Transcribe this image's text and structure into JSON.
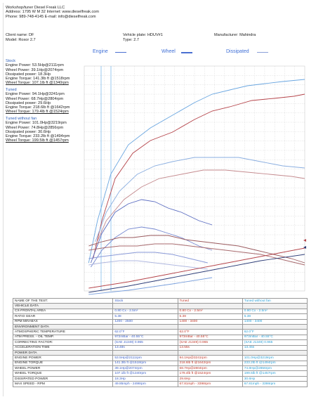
{
  "header": {
    "line1": "Workshop/tuner Diesel Freak LLC",
    "line2": "Address: 1795 W M 32 Internet: www.dieselfreak.com",
    "line3": "Phone: 989-748-4145 E-mail: info@dieselfreak.com"
  },
  "vehicle": {
    "client": "Client name: DF",
    "model": "Model: Roxor 2.7",
    "plate": "Vehicle plate: HDUV#1",
    "type": "Type: 2.7",
    "manufacturer": "Manufacturer: Mahindra"
  },
  "legend": {
    "engine": "Engine",
    "wheel": "Wheel",
    "dissipated": "Dissipated",
    "engine_color": "#4a6fd1",
    "wheel_color": "#4a6fd1",
    "dissipated_color": "#4a6fd1"
  },
  "runs": [
    {
      "title": "Stock",
      "lines": [
        "Engine Power: 53.5Hp@2111rpm",
        "Wheel Power: 39.1Hp@2074rpm",
        "Dissipated power: 18.3Hp",
        "Engine Torque: 141.3lb ft @1518rpm",
        "Wheel Torque: 107.1lb ft @1340rpm"
      ]
    },
    {
      "title": "Tuned",
      "lines": [
        "Engine Power: 94.1Hp@3241rpm",
        "Wheel Power: 68.7Hp@2804rpm",
        "Dissipated power: 29.6Hp",
        "Engine Torque: 218.6lb ft @1642rpm",
        "Wheel Torque: 179.4lb ft @1524rpm"
      ]
    },
    {
      "title": "Tuned without fan",
      "lines": [
        "Engine Power: 101.0Hp@3219rpm",
        "Wheel Power: 74.8Hp@2856rpm",
        "Dissipated power: 30.6Hp",
        "Engine Torque: 233.2lb ft @1494rpm",
        "Wheel Torque: 199.5lb ft @1457rpm"
      ]
    }
  ],
  "chart_data": {
    "type": "line",
    "series": [
      {
        "name": "Tuned without fan",
        "kind": "engine torque",
        "color": "#6aa6e0",
        "points": [
          [
            0.02,
            0.1
          ],
          [
            0.06,
            0.3
          ],
          [
            0.12,
            0.52
          ],
          [
            0.2,
            0.66
          ],
          [
            0.3,
            0.74
          ],
          [
            0.4,
            0.8
          ],
          [
            0.5,
            0.86
          ],
          [
            0.58,
            0.9
          ],
          [
            0.66,
            0.92
          ],
          [
            0.74,
            0.94
          ],
          [
            0.82,
            0.95
          ],
          [
            0.9,
            0.96
          ],
          [
            1.0,
            0.97
          ]
        ]
      },
      {
        "name": "Tuned",
        "kind": "engine torque",
        "color": "#b5444a",
        "points": [
          [
            0.04,
            0.12
          ],
          [
            0.08,
            0.3
          ],
          [
            0.14,
            0.5
          ],
          [
            0.22,
            0.62
          ],
          [
            0.3,
            0.68
          ],
          [
            0.4,
            0.72
          ],
          [
            0.5,
            0.78
          ],
          [
            0.58,
            0.82
          ],
          [
            0.66,
            0.84
          ],
          [
            0.76,
            0.87
          ],
          [
            0.86,
            0.88
          ],
          [
            0.95,
            0.89
          ],
          [
            1.0,
            0.9
          ]
        ]
      },
      {
        "name": "Tuned without fan",
        "kind": "wheel",
        "color": "#8aaee0",
        "points": [
          [
            0.05,
            0.2
          ],
          [
            0.1,
            0.34
          ],
          [
            0.16,
            0.44
          ],
          [
            0.24,
            0.52
          ],
          [
            0.32,
            0.56
          ],
          [
            0.4,
            0.58
          ],
          [
            0.5,
            0.6
          ],
          [
            0.6,
            0.6
          ],
          [
            0.7,
            0.6
          ],
          [
            0.8,
            0.58
          ],
          [
            0.9,
            0.56
          ],
          [
            1.0,
            0.55
          ]
        ]
      },
      {
        "name": "Tuned",
        "kind": "wheel",
        "color": "#c48a8e",
        "points": [
          [
            0.05,
            0.18
          ],
          [
            0.1,
            0.3
          ],
          [
            0.18,
            0.4
          ],
          [
            0.26,
            0.46
          ],
          [
            0.34,
            0.5
          ],
          [
            0.44,
            0.52
          ],
          [
            0.54,
            0.54
          ],
          [
            0.64,
            0.54
          ],
          [
            0.74,
            0.53
          ],
          [
            0.84,
            0.52
          ],
          [
            0.94,
            0.51
          ],
          [
            1.0,
            0.5
          ]
        ]
      },
      {
        "name": "Stock",
        "kind": "engine",
        "color": "#5a6cc0",
        "points": [
          [
            0.03,
            0.1
          ],
          [
            0.08,
            0.24
          ],
          [
            0.14,
            0.34
          ],
          [
            0.2,
            0.38
          ],
          [
            0.26,
            0.4
          ],
          [
            0.32,
            0.39
          ],
          [
            0.38,
            0.36
          ],
          [
            0.44,
            0.34
          ],
          [
            0.52,
            0.3
          ],
          [
            0.58,
            0.28
          ]
        ]
      },
      {
        "name": "Stock",
        "kind": "wheel",
        "color": "#7588d0",
        "points": [
          [
            0.03,
            0.08
          ],
          [
            0.08,
            0.16
          ],
          [
            0.14,
            0.22
          ],
          [
            0.2,
            0.26
          ],
          [
            0.26,
            0.27
          ],
          [
            0.32,
            0.26
          ],
          [
            0.38,
            0.24
          ],
          [
            0.44,
            0.22
          ],
          [
            0.52,
            0.18
          ],
          [
            0.58,
            0.16
          ]
        ]
      },
      {
        "name": "Tuned without fan",
        "kind": "wheel torque",
        "color": "#9a5a5e",
        "points": [
          [
            0.02,
            0.18
          ],
          [
            0.08,
            0.2
          ],
          [
            0.16,
            0.22
          ],
          [
            0.22,
            0.22
          ],
          [
            0.3,
            0.23
          ],
          [
            0.38,
            0.23
          ],
          [
            0.46,
            0.21
          ],
          [
            0.54,
            0.2
          ],
          [
            0.62,
            0.19
          ],
          [
            0.7,
            0.18
          ],
          [
            0.78,
            0.16
          ],
          [
            0.86,
            0.14
          ],
          [
            0.94,
            0.12
          ],
          [
            1.0,
            0.1
          ]
        ]
      },
      {
        "name": "Tuned",
        "kind": "wheel torque",
        "color": "#a86a6e",
        "points": [
          [
            0.02,
            0.16
          ],
          [
            0.08,
            0.17
          ],
          [
            0.16,
            0.18
          ],
          [
            0.24,
            0.18
          ],
          [
            0.32,
            0.19
          ],
          [
            0.4,
            0.19
          ],
          [
            0.48,
            0.18
          ],
          [
            0.56,
            0.17
          ],
          [
            0.64,
            0.16
          ],
          [
            0.72,
            0.15
          ],
          [
            0.8,
            0.14
          ],
          [
            0.88,
            0.12
          ],
          [
            0.96,
            0.1
          ],
          [
            1.0,
            0.09
          ]
        ]
      },
      {
        "name": "Stock",
        "kind": "torque",
        "color": "#8a9ad8",
        "points": [
          [
            0.02,
            0.12
          ],
          [
            0.08,
            0.13
          ],
          [
            0.16,
            0.14
          ],
          [
            0.24,
            0.15
          ],
          [
            0.32,
            0.15
          ],
          [
            0.4,
            0.14
          ],
          [
            0.48,
            0.12
          ],
          [
            0.56,
            0.1
          ]
        ]
      },
      {
        "name": "Stock",
        "kind": "torque lower",
        "color": "#b0b8e0",
        "points": [
          [
            0.02,
            0.09
          ],
          [
            0.08,
            0.1
          ],
          [
            0.16,
            0.11
          ],
          [
            0.24,
            0.11
          ],
          [
            0.32,
            0.1
          ],
          [
            0.4,
            0.09
          ],
          [
            0.48,
            0.08
          ],
          [
            0.56,
            0.07
          ]
        ]
      },
      {
        "name": "Tuned",
        "kind": "dissipated",
        "color": "#b5444a",
        "points": [
          [
            0.02,
            -0.02
          ],
          [
            0.2,
            0.01
          ],
          [
            0.4,
            0.05
          ],
          [
            0.6,
            0.09
          ],
          [
            0.8,
            0.13
          ],
          [
            1.0,
            0.17
          ]
        ]
      },
      {
        "name": "Tuned without fan",
        "kind": "dissipated",
        "color": "#2e3e78",
        "points": [
          [
            0.02,
            -0.04
          ],
          [
            0.2,
            -0.01
          ],
          [
            0.4,
            0.03
          ],
          [
            0.6,
            0.07
          ],
          [
            0.8,
            0.11
          ],
          [
            1.0,
            0.14
          ]
        ]
      },
      {
        "name": "Stock",
        "kind": "dissipated",
        "color": "#7aa0dd",
        "points": [
          [
            0.02,
            -0.05
          ],
          [
            0.2,
            -0.03
          ],
          [
            0.4,
            0.0
          ],
          [
            0.58,
            0.03
          ]
        ]
      }
    ]
  },
  "table": {
    "head": [
      "NAME OF THE TEST:",
      "Stock",
      "Tuned",
      "Tuned without fan"
    ],
    "rows": [
      {
        "section": true,
        "label": "VEHICLE DATA",
        "vals": [
          "",
          "",
          ""
        ]
      },
      {
        "label": "CX-FRONTAL AREA",
        "vals": [
          "0.80 Cx - 2.5m²",
          "0.80 Cx - 2.5m²",
          "0.80 Cx - 2.5m²"
        ]
      },
      {
        "label": "RATIO GEAR",
        "vals": [
          "5.38",
          "5.38",
          "5.38"
        ]
      },
      {
        "label": "RPM MIN-MAX",
        "vals": [
          "1200 - 2500",
          "1400 - 3400",
          "1400 - 3400"
        ]
      },
      {
        "section": true,
        "label": "ENVIRONMENT DATA",
        "vals": [
          "",
          "",
          ""
        ]
      },
      {
        "label": "ATMOSPHERIC TEMPERATURE",
        "vals": [
          "62.0°F",
          "62.0°F",
          "62.0°F"
        ]
      },
      {
        "label": "ATM PRESS. - OIL TEMP.",
        "vals": [
          "972mBar - 40.55°C",
          "973mBar - 40.55°C",
          "973mBar - 40.55°C"
        ]
      },
      {
        "label": "CORRECTING  FACTOR:",
        "vals": [
          "(SAE J1349) 0.965",
          "(SAE J1349) 0.965",
          "(SAE J1349) 0.965"
        ]
      },
      {
        "label": "ACCELERATION  TIME",
        "vals": [
          "13.48s",
          "13.55s",
          "13.45s"
        ]
      },
      {
        "section": true,
        "label": "POWER DATA",
        "vals": [
          "",
          "",
          ""
        ]
      },
      {
        "label": "ENGINE POWER",
        "vals": [
          "53.5Hp@2111rpm",
          "94.1Hp@3241rpm",
          "101.0Hp@3219rpm"
        ]
      },
      {
        "label": "ENGINE TORQUE",
        "vals": [
          "141.3lb ft @1518rpm",
          "218.6lb ft @1642rpm",
          "233.2lb ft @1494rpm"
        ]
      },
      {
        "label": "WHEEL POWER",
        "vals": [
          "39.1Hp@2074rpm",
          "68.7Hp@2804rpm",
          "74.8Hp@2856rpm"
        ]
      },
      {
        "label": "WHEEL TORQUE",
        "vals": [
          "107.1lb ft @1340rpm",
          "179.4lb ft @1524rpm",
          "199.5lb ft @1457rpm"
        ]
      },
      {
        "label": "DISSIPATED POWER",
        "vals": [
          "18.3Hp",
          "29.6Hp",
          "30.6Hp"
        ]
      },
      {
        "label": "MAX SPEED - RPM",
        "vals": [
          "49.85mph - 2498rpm",
          "67.81mph - 3398rpm",
          "67.81mph - 3398rpm"
        ]
      }
    ]
  }
}
